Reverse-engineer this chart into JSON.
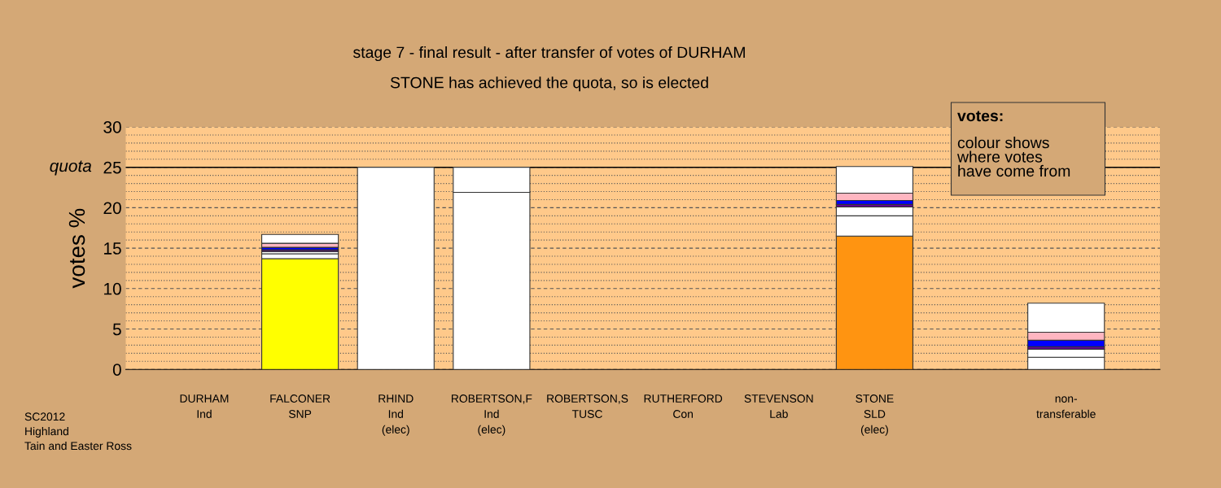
{
  "chart_data": {
    "type": "bar",
    "stacked": true,
    "title": "stage 7 - final result - after transfer of votes of DURHAM",
    "subtitle": "STONE has achieved the quota, so is elected",
    "ylabel": "votes %",
    "categories": [
      "DURHAM\nInd",
      "FALCONER\nSNP",
      "RHIND\nInd\n(elec)",
      "ROBERTSON,F\nInd\n(elec)",
      "ROBERTSON,S\nTUSC",
      "RUTHERFORD\nCon",
      "STEVENSON\nLab",
      "STONE\nSLD\n(elec)",
      null,
      "non-\ntransferable"
    ],
    "series": [
      {
        "colors": [
          "#ffffff",
          "#ffff00",
          "#ffffff",
          "#ffffff",
          "#ffffff",
          "#ffffff",
          "#ffffff",
          "#ff9411",
          "#ffffff",
          "#ffffff"
        ],
        "values": [
          0,
          13.7,
          25,
          21.9,
          0,
          0,
          0,
          16.5,
          null,
          1.5
        ]
      },
      {
        "color": "#ffffff",
        "values": [
          0,
          0.6,
          0,
          3.1,
          0,
          0,
          0,
          2.5,
          null,
          1.0
        ]
      },
      {
        "color": "#ffffff",
        "values": [
          0,
          0.3,
          0,
          0,
          0,
          0,
          0,
          1.1,
          null,
          0
        ]
      },
      {
        "color": "#660099",
        "values": [
          0,
          0.2,
          0,
          0,
          0,
          0,
          0,
          0.3,
          null,
          0.3
        ]
      },
      {
        "color": "#0000ff",
        "values": [
          0,
          0.3,
          0,
          0,
          0,
          0,
          0,
          0.5,
          null,
          0.8
        ]
      },
      {
        "color": "#ffb6c1",
        "values": [
          0,
          0.5,
          0,
          0,
          0,
          0,
          0,
          0.9,
          null,
          1.0
        ]
      },
      {
        "color": "#ffffff",
        "values": [
          0,
          1.1,
          0,
          0,
          0,
          0,
          0,
          3.3,
          null,
          3.6
        ]
      }
    ],
    "ylim": [
      0,
      30
    ],
    "yticks": [
      0,
      {
        "value": 1,
        "label": null
      },
      {
        "value": 2,
        "label": null
      },
      {
        "value": 3,
        "label": null
      },
      {
        "value": 4,
        "label": null
      },
      5,
      {
        "value": 6,
        "label": null
      },
      {
        "value": 7,
        "label": null
      },
      {
        "value": 8,
        "label": null
      },
      {
        "value": 9,
        "label": null
      },
      10,
      {
        "value": 11,
        "label": null
      },
      {
        "value": 12,
        "label": null
      },
      {
        "value": 13,
        "label": null
      },
      {
        "value": 14,
        "label": null
      },
      15,
      {
        "value": 16,
        "label": null
      },
      {
        "value": 17,
        "label": null
      },
      {
        "value": 18,
        "label": null
      },
      {
        "value": 19,
        "label": null
      },
      20,
      {
        "value": 21,
        "label": null
      },
      {
        "value": 22,
        "label": null
      },
      {
        "value": 23,
        "label": null
      },
      {
        "value": 24,
        "label": null
      },
      25,
      {
        "value": 26,
        "label": null
      },
      {
        "value": 27,
        "label": null
      },
      {
        "value": 28,
        "label": null
      },
      {
        "value": 29,
        "label": null
      },
      30
    ],
    "grid": "y",
    "ref_lines": [
      {
        "axis": "y",
        "value": 25,
        "label": "quota",
        "color": "#000000",
        "line_style": "solid"
      }
    ],
    "annotations": [
      "SC2012\nHighland\nTain and Easter Ross",
      "votes:",
      "colour shows\nwhere votes\nhave come from"
    ]
  }
}
